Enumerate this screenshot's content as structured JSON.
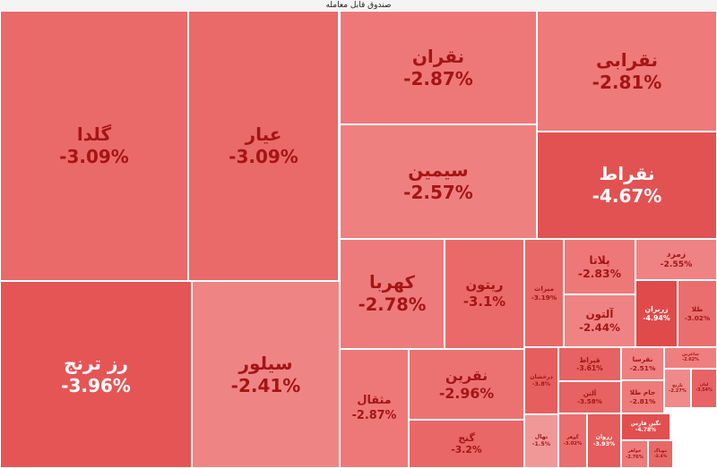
{
  "chart_data": {
    "type": "treemap",
    "title": "صندوق قابل معامله",
    "categories": [
      "گلدا",
      "عیار",
      "رز ترنج",
      "سیلور",
      "نقران",
      "نقرابی",
      "سیمین",
      "نقراط",
      "کهربا",
      "ریتون",
      "میراث",
      "پلاتا",
      "زمرد",
      "زربران",
      "طلا",
      "آلتون",
      "مثقال",
      "نقرین",
      "گنج",
      "درخشان",
      "تهال",
      "قیراط",
      "آلتن",
      "نقرسا",
      "ساغرین",
      "جام طلا",
      "نارنج",
      "لیان",
      "گوهر",
      "زروان",
      "نگین فارس",
      "جواهر",
      "مهیاگ"
    ],
    "values": [
      -3.09,
      -3.09,
      -3.96,
      -2.41,
      -2.87,
      -2.81,
      -2.57,
      -4.67,
      -2.78,
      -3.1,
      -3.19,
      -2.83,
      -2.55,
      -4.94,
      -3.02,
      -2.44,
      -2.87,
      -2.96,
      -3.2,
      -3.8,
      -1.5,
      -3.61,
      -3.58,
      -2.51,
      -2.62,
      -2.81,
      -2.27,
      -3.54,
      -3.02,
      -3.93,
      -4.78,
      -2.76,
      -3.4
    ],
    "value_labels": [
      "-3.09%",
      "-3.09%",
      "-3.96%",
      "-2.41%",
      "-2.87%",
      "-2.81%",
      "-2.57%",
      "-4.67%",
      "-2.78%",
      "-3.1%",
      "-3.19%",
      "-2.83%",
      "-2.55%",
      "-4.94%",
      "-3.02%",
      "-2.44%",
      "-2.87%",
      "-2.96%",
      "-3.2%",
      "-3.8%",
      "-1.5%",
      "-3.61%",
      "-3.58%",
      "-2.51%",
      "-2.62%",
      "-2.81%",
      "-2.27%",
      "-3.54%",
      "-3.02%",
      "-3.93%",
      "-4.78%",
      "-2.76%",
      "-3.4%"
    ],
    "colors": [
      "#ea6a6a",
      "#ea6a6a",
      "#e55555",
      "#ef8484",
      "#ee7878",
      "#ee7a7a",
      "#ef8080",
      "#e25252",
      "#ee7b7b",
      "#ea6a6a",
      "#e96868",
      "#ee7878",
      "#ef8282",
      "#e04a4a",
      "#eb6e6e",
      "#ef8383",
      "#ee7878",
      "#ec7272",
      "#e96767",
      "#e65e5e",
      "#f09898",
      "#e76262",
      "#e76262",
      "#ef8080",
      "#ef7e7e",
      "#ee7a7a",
      "#f08a8a",
      "#e86464",
      "#eb6e6e",
      "#e65b5b",
      "#e24f4f",
      "#ee7a7a",
      "#e86868"
    ]
  }
}
